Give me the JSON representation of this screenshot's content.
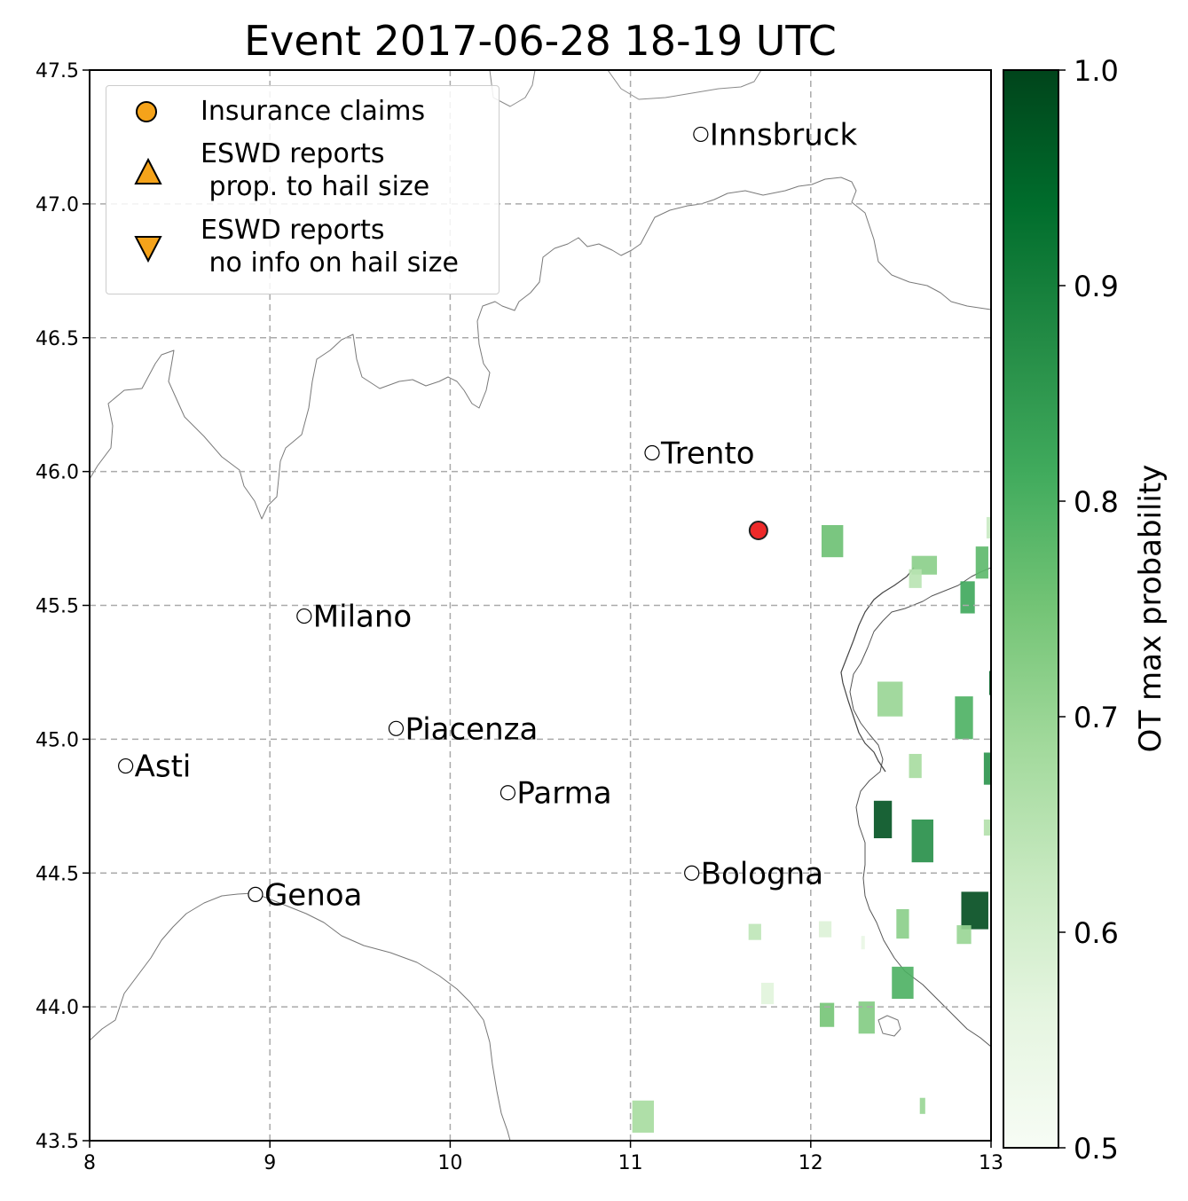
{
  "chart_data": {
    "type": "scatter",
    "title": "Event 2017-06-28 18-19 UTC",
    "xlim": [
      8,
      13
    ],
    "ylim": [
      43.5,
      47.5
    ],
    "x_ticks": [
      "8",
      "9",
      "10",
      "11",
      "12",
      "13"
    ],
    "y_ticks": [
      "43.5",
      "44.0",
      "44.5",
      "45.0",
      "45.5",
      "46.0",
      "46.5",
      "47.0",
      "47.5"
    ],
    "grid": true,
    "legend_position": "upper-left",
    "legend": [
      {
        "label": "Insurance claims",
        "marker": "circle",
        "color": "#f5a31a"
      },
      {
        "label": "ESWD reports\n prop. to hail size",
        "marker": "triangle-up",
        "color": "#f5a31a"
      },
      {
        "label": "ESWD reports\n no info on hail size",
        "marker": "triangle-down",
        "color": "#f5a31a"
      }
    ],
    "cities": [
      {
        "name": "Innsbruck",
        "lon": 11.39,
        "lat": 47.26
      },
      {
        "name": "Trento",
        "lon": 11.12,
        "lat": 46.07
      },
      {
        "name": "Milano",
        "lon": 9.19,
        "lat": 45.46
      },
      {
        "name": "Piacenza",
        "lon": 9.7,
        "lat": 45.04
      },
      {
        "name": "Asti",
        "lon": 8.2,
        "lat": 44.9
      },
      {
        "name": "Parma",
        "lon": 10.32,
        "lat": 44.8
      },
      {
        "name": "Bologna",
        "lon": 11.34,
        "lat": 44.5
      },
      {
        "name": "Genoa",
        "lon": 8.92,
        "lat": 44.42
      }
    ],
    "insurance_claims": [
      {
        "lon": 11.71,
        "lat": 45.78,
        "color": "#ee2a2a"
      }
    ],
    "ot_patches": [
      {
        "lon": 12.12,
        "lat": 45.74,
        "w": 0.12,
        "h": 0.12,
        "p": 0.76
      },
      {
        "lon": 12.63,
        "lat": 45.65,
        "w": 0.14,
        "h": 0.07,
        "p": 0.72
      },
      {
        "lon": 12.58,
        "lat": 45.6,
        "w": 0.07,
        "h": 0.07,
        "p": 0.65
      },
      {
        "lon": 12.95,
        "lat": 45.66,
        "w": 0.07,
        "h": 0.12,
        "p": 0.78
      },
      {
        "lon": 12.87,
        "lat": 45.53,
        "w": 0.08,
        "h": 0.12,
        "p": 0.82
      },
      {
        "lon": 12.99,
        "lat": 45.79,
        "w": 0.03,
        "h": 0.08,
        "p": 0.62
      },
      {
        "lon": 12.44,
        "lat": 45.15,
        "w": 0.14,
        "h": 0.13,
        "p": 0.7
      },
      {
        "lon": 12.85,
        "lat": 45.08,
        "w": 0.1,
        "h": 0.16,
        "p": 0.8
      },
      {
        "lon": 13.0,
        "lat": 45.21,
        "w": 0.02,
        "h": 0.09,
        "p": 0.96
      },
      {
        "lon": 12.58,
        "lat": 44.9,
        "w": 0.07,
        "h": 0.09,
        "p": 0.68
      },
      {
        "lon": 12.98,
        "lat": 44.89,
        "w": 0.04,
        "h": 0.12,
        "p": 0.86
      },
      {
        "lon": 12.4,
        "lat": 44.7,
        "w": 0.1,
        "h": 0.14,
        "p": 0.98
      },
      {
        "lon": 12.62,
        "lat": 44.62,
        "w": 0.12,
        "h": 0.16,
        "p": 0.87
      },
      {
        "lon": 12.98,
        "lat": 44.67,
        "w": 0.04,
        "h": 0.06,
        "p": 0.66
      },
      {
        "lon": 12.91,
        "lat": 44.36,
        "w": 0.15,
        "h": 0.14,
        "p": 0.99
      },
      {
        "lon": 12.51,
        "lat": 44.31,
        "w": 0.07,
        "h": 0.11,
        "p": 0.72
      },
      {
        "lon": 12.85,
        "lat": 44.27,
        "w": 0.08,
        "h": 0.07,
        "p": 0.7
      },
      {
        "lon": 11.69,
        "lat": 44.28,
        "w": 0.07,
        "h": 0.06,
        "p": 0.64
      },
      {
        "lon": 12.08,
        "lat": 44.29,
        "w": 0.07,
        "h": 0.06,
        "p": 0.58
      },
      {
        "lon": 12.29,
        "lat": 44.24,
        "w": 0.02,
        "h": 0.05,
        "p": 0.55
      },
      {
        "lon": 12.51,
        "lat": 44.09,
        "w": 0.12,
        "h": 0.12,
        "p": 0.8
      },
      {
        "lon": 11.76,
        "lat": 44.05,
        "w": 0.07,
        "h": 0.08,
        "p": 0.57
      },
      {
        "lon": 12.09,
        "lat": 43.97,
        "w": 0.08,
        "h": 0.09,
        "p": 0.75
      },
      {
        "lon": 12.31,
        "lat": 43.96,
        "w": 0.09,
        "h": 0.12,
        "p": 0.73
      },
      {
        "lon": 11.07,
        "lat": 43.59,
        "w": 0.12,
        "h": 0.12,
        "p": 0.68
      },
      {
        "lon": 12.62,
        "lat": 43.63,
        "w": 0.03,
        "h": 0.06,
        "p": 0.7
      }
    ],
    "colorbar": {
      "label": "OT max probability",
      "range": [
        0.5,
        1.0
      ],
      "ticks": [
        "0.5",
        "0.6",
        "0.7",
        "0.8",
        "0.9",
        "1.0"
      ],
      "colormap": "Greens",
      "color_low": "#f7fcf5",
      "color_high": "#00441b"
    }
  }
}
